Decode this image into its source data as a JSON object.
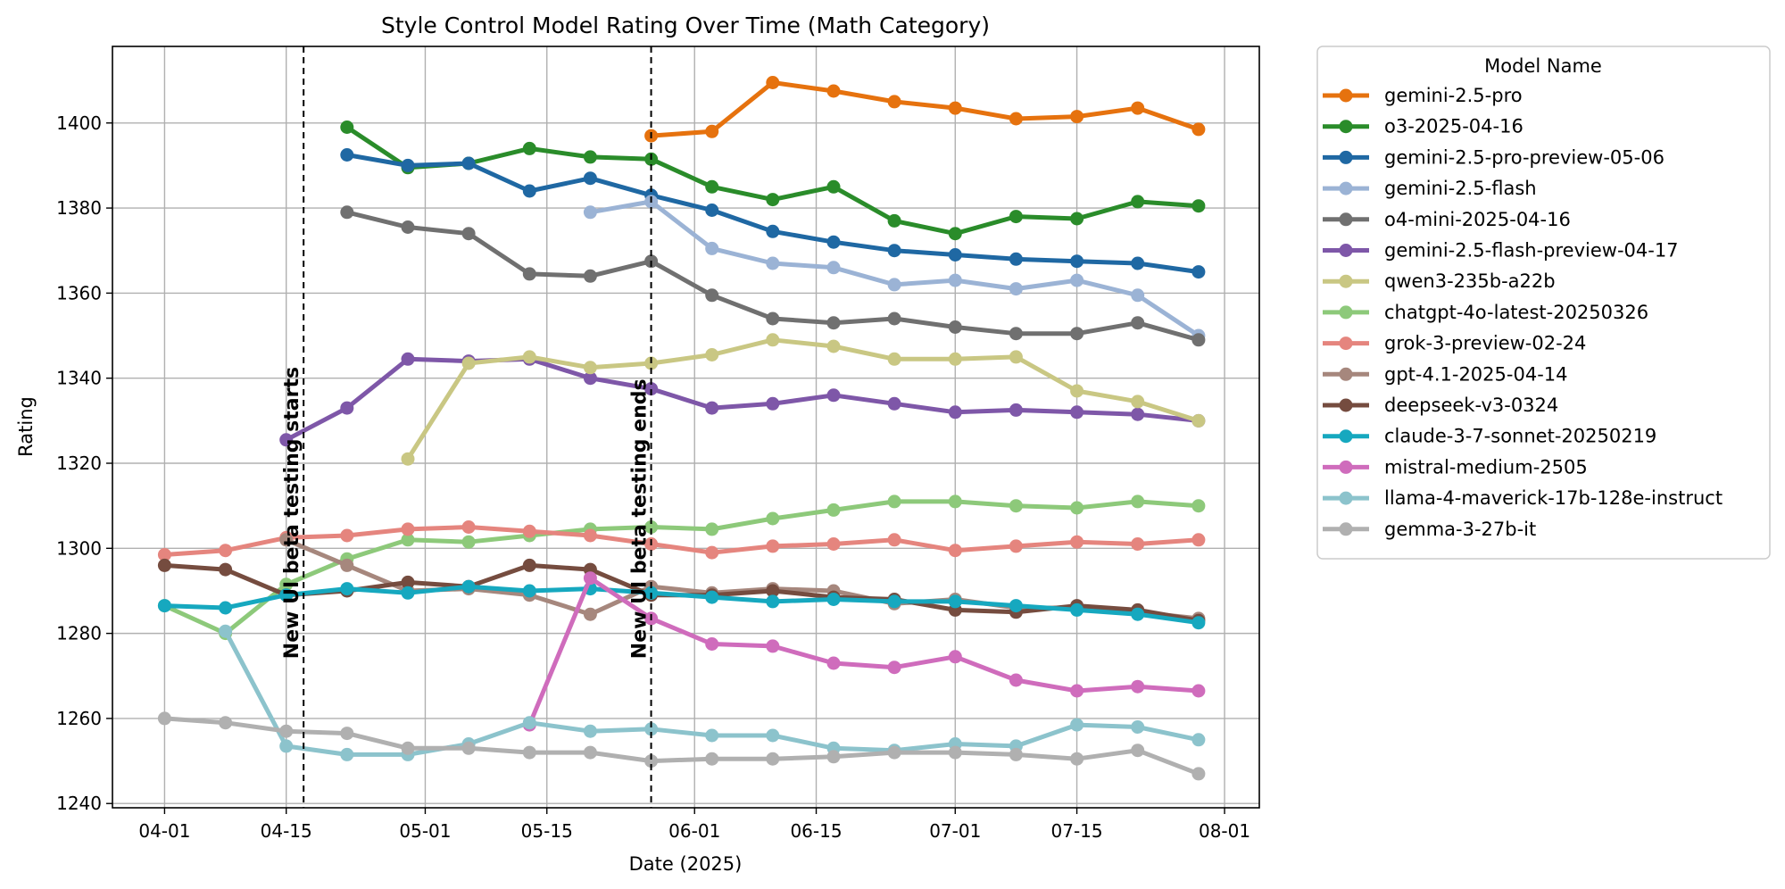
{
  "chart_data": {
    "type": "line",
    "title": "Style Control Model Rating Over Time (Math Category)",
    "xlabel": "Date (2025)",
    "ylabel": "Rating",
    "xlim": [
      "2025-03-26",
      "2025-08-05"
    ],
    "ylim": [
      1239,
      1418
    ],
    "grid": true,
    "x_tick_dates": [
      "2025-04-01",
      "2025-04-15",
      "2025-05-01",
      "2025-05-15",
      "2025-06-01",
      "2025-06-15",
      "2025-07-01",
      "2025-07-15",
      "2025-08-01"
    ],
    "x_tick_labels": [
      "04-01",
      "04-15",
      "05-01",
      "05-15",
      "06-01",
      "06-15",
      "07-01",
      "07-15",
      "08-01"
    ],
    "y_ticks": [
      1240,
      1260,
      1280,
      1300,
      1320,
      1340,
      1360,
      1380,
      1400
    ],
    "legend": {
      "title": "Model Name",
      "placement": "outside-right"
    },
    "annotations": [
      {
        "x": "2025-04-17",
        "text": "New UI beta testing starts",
        "style": "dashed-vertical-line"
      },
      {
        "x": "2025-05-27",
        "text": "New UI beta testing ends",
        "style": "dashed-vertical-line"
      }
    ],
    "series": [
      {
        "name": "gemini-2.5-pro",
        "color": "#e6720e",
        "x": [
          "2025-05-27",
          "2025-06-03",
          "2025-06-10",
          "2025-06-17",
          "2025-06-24",
          "2025-07-01",
          "2025-07-08",
          "2025-07-15",
          "2025-07-22",
          "2025-07-29"
        ],
        "y": [
          1397,
          1398,
          1409.5,
          1407.5,
          1405,
          1403.5,
          1401,
          1401.5,
          1403.5,
          1398.5
        ]
      },
      {
        "name": "o3-2025-04-16",
        "color": "#2a8c2a",
        "x": [
          "2025-04-22",
          "2025-04-29",
          "2025-05-06",
          "2025-05-13",
          "2025-05-20",
          "2025-05-27",
          "2025-06-03",
          "2025-06-10",
          "2025-06-17",
          "2025-06-24",
          "2025-07-01",
          "2025-07-08",
          "2025-07-15",
          "2025-07-22",
          "2025-07-29"
        ],
        "y": [
          1399,
          1389.5,
          1390.5,
          1394,
          1392,
          1391.5,
          1385,
          1382,
          1385,
          1377,
          1374,
          1378,
          1377.5,
          1381.5,
          1380.5
        ]
      },
      {
        "name": "gemini-2.5-pro-preview-05-06",
        "color": "#1f68a3",
        "x": [
          "2025-04-22",
          "2025-04-29",
          "2025-05-06",
          "2025-05-13",
          "2025-05-20",
          "2025-05-27",
          "2025-06-03",
          "2025-06-10",
          "2025-06-17",
          "2025-06-24",
          "2025-07-01",
          "2025-07-08",
          "2025-07-15",
          "2025-07-22",
          "2025-07-29"
        ],
        "y": [
          1392.5,
          1390,
          1390.5,
          1384,
          1387,
          1383,
          1379.5,
          1374.5,
          1372,
          1370,
          1369,
          1368,
          1367.5,
          1367,
          1365
        ]
      },
      {
        "name": "gemini-2.5-flash",
        "color": "#9bb3d5",
        "x": [
          "2025-05-20",
          "2025-05-27",
          "2025-06-03",
          "2025-06-10",
          "2025-06-17",
          "2025-06-24",
          "2025-07-01",
          "2025-07-08",
          "2025-07-15",
          "2025-07-22",
          "2025-07-29"
        ],
        "y": [
          1379,
          1381.5,
          1370.5,
          1367,
          1366,
          1362,
          1363,
          1361,
          1363,
          1359.5,
          1350
        ]
      },
      {
        "name": "o4-mini-2025-04-16",
        "color": "#707070",
        "x": [
          "2025-04-22",
          "2025-04-29",
          "2025-05-06",
          "2025-05-13",
          "2025-05-20",
          "2025-05-27",
          "2025-06-03",
          "2025-06-10",
          "2025-06-17",
          "2025-06-24",
          "2025-07-01",
          "2025-07-08",
          "2025-07-15",
          "2025-07-22",
          "2025-07-29"
        ],
        "y": [
          1379,
          1375.5,
          1374,
          1364.5,
          1364,
          1367.5,
          1359.5,
          1354,
          1353,
          1354,
          1352,
          1350.5,
          1350.5,
          1353,
          1349
        ]
      },
      {
        "name": "gemini-2.5-flash-preview-04-17",
        "color": "#7e57a8",
        "x": [
          "2025-04-15",
          "2025-04-22",
          "2025-04-29",
          "2025-05-06",
          "2025-05-13",
          "2025-05-20",
          "2025-05-27",
          "2025-06-03",
          "2025-06-10",
          "2025-06-17",
          "2025-06-24",
          "2025-07-01",
          "2025-07-08",
          "2025-07-15",
          "2025-07-22",
          "2025-07-29"
        ],
        "y": [
          1325.5,
          1333,
          1344.5,
          1344,
          1344.5,
          1340,
          1337.5,
          1333,
          1334,
          1336,
          1334,
          1332,
          1332.5,
          1332,
          1331.5,
          1330
        ]
      },
      {
        "name": "qwen3-235b-a22b",
        "color": "#c9c783",
        "x": [
          "2025-04-29",
          "2025-05-06",
          "2025-05-13",
          "2025-05-20",
          "2025-05-27",
          "2025-06-03",
          "2025-06-10",
          "2025-06-17",
          "2025-06-24",
          "2025-07-01",
          "2025-07-08",
          "2025-07-15",
          "2025-07-22",
          "2025-07-29"
        ],
        "y": [
          1321,
          1343.5,
          1345,
          1342.5,
          1343.5,
          1345.5,
          1349,
          1347.5,
          1344.5,
          1344.5,
          1345,
          1337,
          1334.5,
          1330
        ]
      },
      {
        "name": "chatgpt-4o-latest-20250326",
        "color": "#8dc97a",
        "x": [
          "2025-04-01",
          "2025-04-08",
          "2025-04-15",
          "2025-04-22",
          "2025-04-29",
          "2025-05-06",
          "2025-05-13",
          "2025-05-20",
          "2025-05-27",
          "2025-06-03",
          "2025-06-10",
          "2025-06-17",
          "2025-06-24",
          "2025-07-01",
          "2025-07-08",
          "2025-07-15",
          "2025-07-22",
          "2025-07-29"
        ],
        "y": [
          1286.5,
          1280,
          1291.5,
          1297.5,
          1302,
          1301.5,
          1303,
          1304.5,
          1305,
          1304.5,
          1307,
          1309,
          1311,
          1311,
          1310,
          1309.5,
          1311,
          1310
        ]
      },
      {
        "name": "grok-3-preview-02-24",
        "color": "#e5857e",
        "x": [
          "2025-04-01",
          "2025-04-08",
          "2025-04-15",
          "2025-04-22",
          "2025-04-29",
          "2025-05-06",
          "2025-05-13",
          "2025-05-20",
          "2025-05-27",
          "2025-06-03",
          "2025-06-10",
          "2025-06-17",
          "2025-06-24",
          "2025-07-01",
          "2025-07-08",
          "2025-07-15",
          "2025-07-22",
          "2025-07-29"
        ],
        "y": [
          1298.5,
          1299.5,
          1302.5,
          1303,
          1304.5,
          1305,
          1304,
          1303,
          1301,
          1299,
          1300.5,
          1301,
          1302,
          1299.5,
          1300.5,
          1301.5,
          1301,
          1302
        ]
      },
      {
        "name": "gpt-4.1-2025-04-14",
        "color": "#a6877d",
        "x": [
          "2025-04-15",
          "2025-04-22",
          "2025-04-29",
          "2025-05-06",
          "2025-05-13",
          "2025-05-20",
          "2025-05-27",
          "2025-06-03",
          "2025-06-10",
          "2025-06-17",
          "2025-06-24",
          "2025-07-01",
          "2025-07-08",
          "2025-07-15",
          "2025-07-22",
          "2025-07-29"
        ],
        "y": [
          1302,
          1296,
          1290,
          1290.5,
          1289,
          1284.5,
          1291,
          1289.5,
          1290.5,
          1290,
          1287,
          1288,
          1286,
          1286,
          1285,
          1283.5
        ]
      },
      {
        "name": "deepseek-v3-0324",
        "color": "#754c3f",
        "x": [
          "2025-04-01",
          "2025-04-08",
          "2025-04-15",
          "2025-04-22",
          "2025-04-29",
          "2025-05-06",
          "2025-05-13",
          "2025-05-20",
          "2025-05-27",
          "2025-06-03",
          "2025-06-10",
          "2025-06-17",
          "2025-06-24",
          "2025-07-01",
          "2025-07-08",
          "2025-07-15",
          "2025-07-22",
          "2025-07-29"
        ],
        "y": [
          1296,
          1295,
          1289,
          1290,
          1292,
          1291,
          1296,
          1295,
          1289,
          1289,
          1290,
          1288.5,
          1288,
          1285.5,
          1285,
          1286.5,
          1285.5,
          1283
        ]
      },
      {
        "name": "claude-3-7-sonnet-20250219",
        "color": "#16a8bf",
        "x": [
          "2025-04-01",
          "2025-04-08",
          "2025-04-15",
          "2025-04-22",
          "2025-04-29",
          "2025-05-06",
          "2025-05-13",
          "2025-05-20",
          "2025-05-27",
          "2025-06-03",
          "2025-06-10",
          "2025-06-17",
          "2025-06-24",
          "2025-07-01",
          "2025-07-08",
          "2025-07-15",
          "2025-07-22",
          "2025-07-29"
        ],
        "y": [
          1286.5,
          1286,
          1289,
          1290.5,
          1289.5,
          1291,
          1290,
          1290.5,
          1289.5,
          1288.5,
          1287.5,
          1288,
          1287.5,
          1287.5,
          1286.5,
          1285.5,
          1284.5,
          1282.5
        ]
      },
      {
        "name": "mistral-medium-2505",
        "color": "#cf6cbc",
        "x": [
          "2025-05-13",
          "2025-05-20",
          "2025-05-27",
          "2025-06-03",
          "2025-06-10",
          "2025-06-17",
          "2025-06-24",
          "2025-07-01",
          "2025-07-08",
          "2025-07-15",
          "2025-07-22",
          "2025-07-29"
        ],
        "y": [
          1258.5,
          1293,
          1283.5,
          1277.5,
          1277,
          1273,
          1272,
          1274.5,
          1269,
          1266.5,
          1267.5,
          1266.5
        ]
      },
      {
        "name": "llama-4-maverick-17b-128e-instruct",
        "color": "#8cc3cc",
        "x": [
          "2025-04-08",
          "2025-04-15",
          "2025-04-22",
          "2025-04-29",
          "2025-05-06",
          "2025-05-13",
          "2025-05-20",
          "2025-05-27",
          "2025-06-03",
          "2025-06-10",
          "2025-06-17",
          "2025-06-24",
          "2025-07-01",
          "2025-07-08",
          "2025-07-15",
          "2025-07-22",
          "2025-07-29"
        ],
        "y": [
          1280.5,
          1253.5,
          1251.5,
          1251.5,
          1254,
          1259,
          1257,
          1257.5,
          1256,
          1256,
          1253,
          1252.5,
          1254,
          1253.5,
          1258.5,
          1258,
          1255
        ]
      },
      {
        "name": "gemma-3-27b-it",
        "color": "#b0b0b0",
        "x": [
          "2025-04-01",
          "2025-04-08",
          "2025-04-15",
          "2025-04-22",
          "2025-04-29",
          "2025-05-06",
          "2025-05-13",
          "2025-05-20",
          "2025-05-27",
          "2025-06-03",
          "2025-06-10",
          "2025-06-17",
          "2025-06-24",
          "2025-07-01",
          "2025-07-08",
          "2025-07-15",
          "2025-07-22",
          "2025-07-29"
        ],
        "y": [
          1260,
          1259,
          1257,
          1256.5,
          1253,
          1253,
          1252,
          1252,
          1250,
          1250.5,
          1250.5,
          1251,
          1252,
          1252,
          1251.5,
          1250.5,
          1252.5,
          1247
        ]
      }
    ]
  }
}
